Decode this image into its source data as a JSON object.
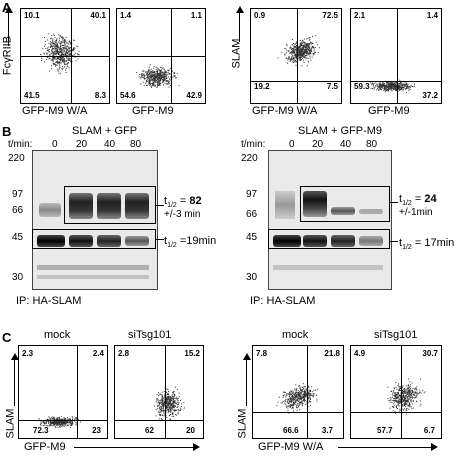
{
  "panel_letters": {
    "a": "A",
    "b": "B",
    "c": "C"
  },
  "panel_a": {
    "ylabel_left": "FcγRIIB",
    "ylabel_right": "SLAM",
    "plots": [
      {
        "xlabel": "GFP-M9 W/A",
        "q": [
          "10.1",
          "40.1",
          "41.5",
          "8.3"
        ]
      },
      {
        "xlabel": "GFP-M9",
        "q": [
          "1.4",
          "1.1",
          "54.6",
          "42.9"
        ]
      },
      {
        "xlabel": "GFP-M9 W/A",
        "q": [
          "0.9",
          "72.5",
          "19.2",
          "7.5"
        ]
      },
      {
        "xlabel": "GFP-M9",
        "q": [
          "2.1",
          "1.4",
          "59.3",
          "37.2"
        ]
      }
    ]
  },
  "panel_b": {
    "blots": [
      {
        "title": "SLAM + GFP",
        "tlabel": "t/min:",
        "times": [
          "0",
          "20",
          "40",
          "80"
        ],
        "mw": [
          "220",
          "97",
          "66",
          "45",
          "30"
        ],
        "upper_half_pre": "t",
        "upper_half_sub": "1/2",
        "upper_half_eq": " = ",
        "upper_half_val": "82",
        "upper_half_err": "+/-3 min",
        "lower_half_pre": "t",
        "lower_half_sub": "1/2",
        "lower_half_val": " =19min",
        "ip": "IP: HA-SLAM"
      },
      {
        "title": "SLAM + GFP-M9",
        "tlabel": "t/min:",
        "times": [
          "0",
          "20",
          "40",
          "80"
        ],
        "mw": [
          "220",
          "97",
          "66",
          "45",
          "30"
        ],
        "upper_half_pre": "t",
        "upper_half_sub": "1/2",
        "upper_half_eq": " = ",
        "upper_half_val": "24",
        "upper_half_err": "+/-1min",
        "lower_half_pre": "t",
        "lower_half_sub": "1/2",
        "lower_half_val": " = 17min",
        "ip": "IP: HA-SLAM"
      }
    ]
  },
  "panel_c": {
    "ylabel": "SLAM",
    "groups": [
      {
        "xlabel": "GFP-M9",
        "plots": [
          {
            "title": "mock",
            "q": [
              "2.3",
              "2.4",
              "72.3",
              "23"
            ]
          },
          {
            "title": "siTsg101",
            "q": [
              "2.8",
              "15.2",
              "62",
              "20"
            ]
          }
        ]
      },
      {
        "xlabel": "GFP-M9 W/A",
        "plots": [
          {
            "title": "mock",
            "q": [
              "7.8",
              "21.8",
              "66.6",
              "3.7"
            ]
          },
          {
            "title": "siTsg101",
            "q": [
              "4.9",
              "30.7",
              "57.7",
              "6.7"
            ]
          }
        ]
      }
    ]
  }
}
